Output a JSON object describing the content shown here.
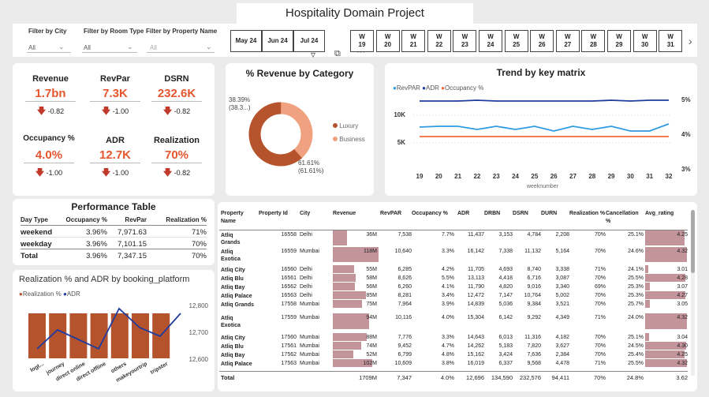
{
  "title": "Hospitality Domain Project",
  "filters": {
    "city": {
      "label": "Filter by City",
      "value": "All"
    },
    "room_type": {
      "label": "Filter by Room Type",
      "value": "All"
    },
    "property_name": {
      "label": "Filter by Property Name",
      "value": "All"
    }
  },
  "months": [
    "May 24",
    "Jun 24",
    "Jul 24"
  ],
  "weeks": [
    "W 19",
    "W 20",
    "W 21",
    "W 22",
    "W 23",
    "W 24",
    "W 25",
    "W 26",
    "W 27",
    "W 28",
    "W 29",
    "W 30",
    "W 31"
  ],
  "kpis": [
    {
      "label": "Revenue",
      "value": "1.7bn",
      "delta": "-0.82"
    },
    {
      "label": "RevPar",
      "value": "7.3K",
      "delta": "-1.00"
    },
    {
      "label": "DSRN",
      "value": "232.6K",
      "delta": "-0.82"
    },
    {
      "label": "Occupancy %",
      "value": "4.0%",
      "delta": "-1.00"
    },
    {
      "label": "ADR",
      "value": "12.7K",
      "delta": "-1.00"
    },
    {
      "label": "Realization",
      "value": "70%",
      "delta": "-0.82"
    }
  ],
  "donut": {
    "title": "% Revenue by Category",
    "label_small": "38.39%",
    "label_small_sub": "(38.3...)",
    "label_large": "61.61%",
    "label_large_sub": "(61.61%)",
    "legend": [
      {
        "name": "Luxury",
        "color": "#b5532c"
      },
      {
        "name": "Business",
        "color": "#f0a17f"
      }
    ],
    "values": [
      61.61,
      38.39
    ]
  },
  "trend": {
    "title": "Trend by key matrix",
    "legend": [
      {
        "name": "RevPAR",
        "color": "#2f9be3"
      },
      {
        "name": "ADR",
        "color": "#1f3c9e"
      },
      {
        "name": "Occupancy %",
        "color": "#f26b3a"
      }
    ],
    "x": [
      "19",
      "20",
      "21",
      "22",
      "23",
      "24",
      "25",
      "26",
      "27",
      "28",
      "29",
      "30",
      "31",
      "32"
    ],
    "xlabel": "weeknumber",
    "y_left": [
      "10K",
      "5K"
    ],
    "y_right": [
      "5%",
      "4%",
      "3%"
    ]
  },
  "perf_table": {
    "title": "Performance Table",
    "headers": [
      "Day Type",
      "Occupancy %",
      "RevPar",
      "Realization %"
    ],
    "rows": [
      [
        "weekend",
        "3.96%",
        "7,971.63",
        "71%"
      ],
      [
        "weekday",
        "3.96%",
        "7,101.15",
        "70%"
      ]
    ],
    "total": [
      "Total",
      "3.96%",
      "7,347.15",
      "70%"
    ]
  },
  "booking": {
    "title": "Realization % and ADR by booking_platform",
    "legend": [
      {
        "name": "Realization %",
        "color": "#b5532c"
      },
      {
        "name": "ADR",
        "color": "#1f3c9e"
      }
    ],
    "categories": [
      "logt...",
      "journey",
      "direct online",
      "direct offline",
      "others",
      "makeyourtrip",
      "tripster"
    ],
    "y_right": [
      "12,800",
      "12,700",
      "12,600"
    ]
  },
  "main_table": {
    "headers": [
      "Property Name",
      "Property Id",
      "City",
      "Revenue",
      "RevPAR",
      "Occupancy %",
      "ADR",
      "DRBN",
      "DSRN",
      "DURN",
      "Realization %",
      "Cancellation %",
      "Avg_rating"
    ],
    "rows": [
      [
        "Atliq Grands",
        "16558",
        "Delhi",
        "36M",
        "7,538",
        "7.7%",
        "11,437",
        "3,153",
        "4,784",
        "2,208",
        "70%",
        "25.1%",
        "4.25"
      ],
      [
        "Atliq Exotica",
        "16559",
        "Mumbai",
        "118M",
        "10,640",
        "3.3%",
        "16,142",
        "7,338",
        "11,132",
        "5,164",
        "70%",
        "24.6%",
        "4.32"
      ],
      [
        "Atliq City",
        "16560",
        "Delhi",
        "55M",
        "6,285",
        "4.2%",
        "11,705",
        "4,693",
        "8,740",
        "3,338",
        "71%",
        "24.1%",
        "3.01"
      ],
      [
        "Atliq Blu",
        "16561",
        "Delhi",
        "58M",
        "8,626",
        "5.5%",
        "13,113",
        "4,418",
        "6,716",
        "3,087",
        "70%",
        "25.5%",
        "4.28"
      ],
      [
        "Atliq Bay",
        "16562",
        "Delhi",
        "56M",
        "6,260",
        "4.1%",
        "11,790",
        "4,820",
        "9,016",
        "3,340",
        "69%",
        "25.3%",
        "3.07"
      ],
      [
        "Atliq Palace",
        "16563",
        "Delhi",
        "85M",
        "8,281",
        "3.4%",
        "12,472",
        "7,147",
        "10,764",
        "5,002",
        "70%",
        "25.3%",
        "4.27"
      ],
      [
        "Atliq Grands",
        "17558",
        "Mumbai",
        "75M",
        "7,964",
        "3.9%",
        "14,839",
        "5,036",
        "9,384",
        "3,521",
        "70%",
        "25.7%",
        "3.05"
      ],
      [
        "Atliq Exotica",
        "17559",
        "Mumbai",
        "94M",
        "10,116",
        "4.0%",
        "15,304",
        "6,142",
        "9,292",
        "4,349",
        "71%",
        "24.0%",
        "4.32"
      ],
      [
        "Atliq City",
        "17560",
        "Mumbai",
        "88M",
        "7,776",
        "3.3%",
        "14,643",
        "6,013",
        "11,316",
        "4,182",
        "70%",
        "25.1%",
        "3.04"
      ],
      [
        "Atliq Blu",
        "17561",
        "Mumbai",
        "74M",
        "9,452",
        "4.7%",
        "14,262",
        "5,183",
        "7,820",
        "3,627",
        "70%",
        "24.5%",
        "4.30"
      ],
      [
        "Atliq Bay",
        "17562",
        "Mumbai",
        "52M",
        "6,799",
        "4.8%",
        "15,162",
        "3,424",
        "7,636",
        "2,384",
        "70%",
        "25.4%",
        "4.25"
      ],
      [
        "Atliq Palace",
        "17563",
        "Mumbai",
        "102M",
        "10,609",
        "3.8%",
        "16,019",
        "6,337",
        "9,568",
        "4,478",
        "71%",
        "25.5%",
        "4.32"
      ]
    ],
    "total": [
      "Total",
      "",
      "",
      "1709M",
      "7,347",
      "4.0%",
      "12,696",
      "134,590",
      "232,576",
      "94,411",
      "70%",
      "24.8%",
      "3.62"
    ]
  }
}
